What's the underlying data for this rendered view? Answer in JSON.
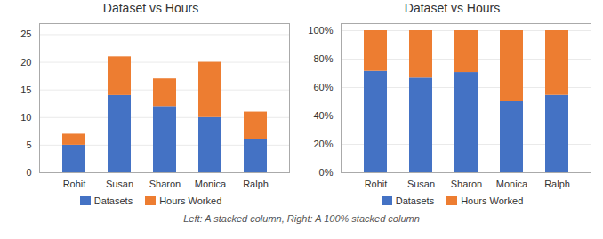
{
  "chart_data": [
    {
      "type": "bar",
      "stacked": true,
      "title": "Dataset vs Hours",
      "categories": [
        "Rohit",
        "Susan",
        "Sharon",
        "Monica",
        "Ralph"
      ],
      "series": [
        {
          "name": "Datasets",
          "color": "#4472C4",
          "values": [
            5,
            14,
            12,
            10,
            6
          ]
        },
        {
          "name": "Hours Worked",
          "color": "#ED7D31",
          "values": [
            2,
            7,
            5,
            10,
            5
          ]
        }
      ],
      "ylim": [
        0,
        27
      ],
      "yticks": [
        0,
        5,
        10,
        15,
        20,
        25
      ],
      "grid": true,
      "legend": "bottom"
    },
    {
      "type": "bar",
      "stacked": true,
      "title": "Dataset vs Hours",
      "categories": [
        "Rohit",
        "Susan",
        "Sharon",
        "Monica",
        "Ralph"
      ],
      "series": [
        {
          "name": "Datasets",
          "color": "#4472C4",
          "values": [
            0.7142857142857143,
            0.6666666666666666,
            0.7058823529411765,
            0.5,
            0.5454545454545454
          ]
        },
        {
          "name": "Hours Worked",
          "color": "#ED7D31",
          "values": [
            0.2857142857142857,
            0.3333333333333333,
            0.29411764705882354,
            0.5,
            0.45454545454545453
          ]
        }
      ],
      "ylim": [
        0,
        1.05
      ],
      "yticks": [
        {
          "value": 0,
          "label": "0%"
        },
        {
          "value": 0.2,
          "label": "20%"
        },
        {
          "value": 0.4,
          "label": "40%"
        },
        {
          "value": 0.6,
          "label": "60%"
        },
        {
          "value": 0.8,
          "label": "80%"
        },
        {
          "value": 1.0,
          "label": "100%"
        }
      ],
      "grid": true,
      "legend": "bottom"
    }
  ],
  "caption": "Left: A stacked column, Right: A 100% stacked column"
}
